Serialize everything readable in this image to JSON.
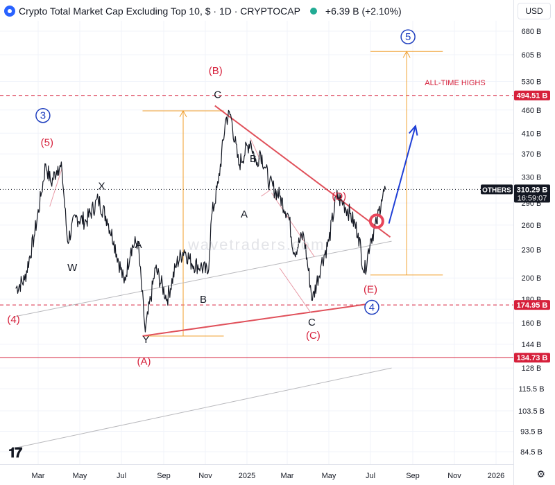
{
  "header": {
    "title": "Crypto Total Market Cap Excluding Top 10, $ · 1D · CRYPTOCAP",
    "change": "+6.39 B (+2.10%)"
  },
  "currency": "USD",
  "watermark": "wavetraders.com",
  "colors": {
    "label_red": "#d6203b",
    "label_blue": "#1f3fbf",
    "orange": "#f0a030",
    "trend_red": "#e0505a",
    "price": "#131722"
  },
  "icons": {
    "logo": "tradingview-logo-icon",
    "status": "market-open-dot-icon",
    "settings": "gear-icon"
  },
  "chart_data": {
    "type": "line",
    "title": "Crypto Total Market Cap Excluding Top 10",
    "scale": "log",
    "ylim": [
      80,
      720
    ],
    "x_ticks": [
      "Mar",
      "May",
      "Jul",
      "Sep",
      "Nov",
      "2025",
      "Mar",
      "May",
      "Jul",
      "Sep",
      "Nov",
      "2026"
    ],
    "y_ticks": [
      "680 B",
      "605 B",
      "530 B",
      "460 B",
      "410 B",
      "370 B",
      "330 B",
      "290 B",
      "260 B",
      "230 B",
      "200 B",
      "180 B",
      "160 B",
      "144 B",
      "128 B",
      "115.5 B",
      "103.5 B",
      "93.5 B",
      "84.5 B"
    ],
    "price_tags": [
      {
        "label": "494.51 B",
        "value": 494.51,
        "style": "red"
      },
      {
        "label": "310.29 B",
        "value": 310.29,
        "style": "dark",
        "sub": "16:59:07",
        "symbol": "OTHERS"
      },
      {
        "label": "174.95 B",
        "value": 174.95,
        "style": "red"
      },
      {
        "label": "134.73 B",
        "value": 134.73,
        "style": "red"
      }
    ],
    "series": [
      {
        "name": "OTHERS",
        "points": [
          [
            "2024-01-28",
            190
          ],
          [
            "2024-02-10",
            198
          ],
          [
            "2024-02-24",
            245
          ],
          [
            "2024-03-05",
            300
          ],
          [
            "2024-03-12",
            352
          ],
          [
            "2024-03-20",
            320
          ],
          [
            "2024-03-30",
            348
          ],
          [
            "2024-04-05",
            340
          ],
          [
            "2024-04-13",
            240
          ],
          [
            "2024-04-25",
            270
          ],
          [
            "2024-05-10",
            265
          ],
          [
            "2024-05-28",
            295
          ],
          [
            "2024-06-10",
            268
          ],
          [
            "2024-06-20",
            240
          ],
          [
            "2024-07-05",
            195
          ],
          [
            "2024-07-15",
            232
          ],
          [
            "2024-07-25",
            240
          ],
          [
            "2024-08-05",
            153
          ],
          [
            "2024-08-20",
            210
          ],
          [
            "2024-09-06",
            180
          ],
          [
            "2024-09-20",
            215
          ],
          [
            "2024-10-01",
            230
          ],
          [
            "2024-10-12",
            215
          ],
          [
            "2024-10-25",
            212
          ],
          [
            "2024-11-05",
            205
          ],
          [
            "2024-11-10",
            270
          ],
          [
            "2024-11-20",
            320
          ],
          [
            "2024-12-01",
            440
          ],
          [
            "2024-12-08",
            450
          ],
          [
            "2024-12-20",
            350
          ],
          [
            "2025-01-06",
            395
          ],
          [
            "2025-01-15",
            350
          ],
          [
            "2025-01-20",
            376
          ],
          [
            "2025-01-28",
            345
          ],
          [
            "2025-02-03",
            320
          ],
          [
            "2025-02-18",
            300
          ],
          [
            "2025-03-03",
            272
          ],
          [
            "2025-03-11",
            227
          ],
          [
            "2025-03-25",
            248
          ],
          [
            "2025-04-07",
            179
          ],
          [
            "2025-04-20",
            215
          ],
          [
            "2025-05-01",
            240
          ],
          [
            "2025-05-12",
            300
          ],
          [
            "2025-05-22",
            290
          ],
          [
            "2025-06-01",
            275
          ],
          [
            "2025-06-13",
            250
          ],
          [
            "2025-06-22",
            205
          ],
          [
            "2025-07-01",
            242
          ],
          [
            "2025-07-10",
            262
          ],
          [
            "2025-07-17",
            295
          ],
          [
            "2025-07-23",
            310.29
          ]
        ]
      }
    ],
    "wave_labels": [
      {
        "text": "(4)",
        "color": "red",
        "x": "2024-01-25",
        "y": 160
      },
      {
        "text": "(5)",
        "color": "red",
        "x": "2024-03-14",
        "y": 385
      },
      {
        "text": "3",
        "color": "blue",
        "circled": true,
        "x": "2024-03-08",
        "y": 440
      },
      {
        "text": "W",
        "color": "black",
        "x": "2024-04-20",
        "y": 207
      },
      {
        "text": "X",
        "color": "black",
        "x": "2024-06-02",
        "y": 310
      },
      {
        "text": "A",
        "color": "black",
        "x": "2024-07-26",
        "y": 232
      },
      {
        "text": "Y",
        "color": "black",
        "x": "2024-08-06",
        "y": 145
      },
      {
        "text": "(A)",
        "color": "red",
        "x": "2024-08-03",
        "y": 130
      },
      {
        "text": "B",
        "color": "black",
        "x": "2024-10-29",
        "y": 177
      },
      {
        "text": "(B)",
        "color": "red",
        "x": "2024-11-16",
        "y": 550
      },
      {
        "text": "C",
        "color": "black",
        "x": "2024-11-19",
        "y": 488
      },
      {
        "text": "A",
        "color": "black",
        "x": "2024-12-28",
        "y": 270
      },
      {
        "text": "B",
        "color": "black",
        "x": "2025-01-10",
        "y": 355
      },
      {
        "text": "C",
        "color": "black",
        "x": "2025-04-06",
        "y": 158
      },
      {
        "text": "(C)",
        "color": "red",
        "x": "2025-04-08",
        "y": 148
      },
      {
        "text": "(D)",
        "color": "red",
        "x": "2025-05-16",
        "y": 295
      },
      {
        "text": "(E)",
        "color": "red",
        "x": "2025-07-01",
        "y": 186
      },
      {
        "text": "4",
        "color": "blue",
        "circled": true,
        "x": "2025-07-03",
        "y": 170
      },
      {
        "text": "5",
        "color": "blue",
        "circled": true,
        "x": "2025-08-25",
        "y": 650
      },
      {
        "text": "ALL-TIME HIGHS",
        "color": "red",
        "x": "2025-11-02",
        "y": 520
      }
    ],
    "watermark_at": {
      "x": "2025-01-15",
      "y": 230
    },
    "levels": [
      {
        "value": 494.51,
        "style": "red-dashed"
      },
      {
        "value": 174.95,
        "style": "red-dashed"
      },
      {
        "value": 134.73,
        "style": "red-solid"
      },
      {
        "value": 310.29,
        "style": "black-dotted"
      }
    ],
    "trendlines": [
      {
        "from": [
          "2024-11-15",
          470
        ],
        "to": [
          "2025-07-30",
          245
        ],
        "color": "red"
      },
      {
        "from": [
          "2024-08-01",
          150
        ],
        "to": [
          "2025-06-30",
          176
        ],
        "color": "red"
      },
      {
        "from": [
          "2024-01-25",
          165
        ],
        "to": [
          "2025-08-01",
          240
        ],
        "color": "gray"
      },
      {
        "from": [
          "2024-01-25",
          86
        ],
        "to": [
          "2025-08-01",
          128
        ],
        "color": "gray"
      }
    ],
    "minor_trendlines": [
      {
        "from": [
          "2024-03-18",
          285
        ],
        "to": [
          "2024-04-05",
          345
        ]
      },
      {
        "from": [
          "2025-01-06",
          400
        ],
        "to": [
          "2025-01-20",
          360
        ]
      },
      {
        "from": [
          "2025-01-22",
          300
        ],
        "to": [
          "2025-02-05",
          310
        ]
      },
      {
        "from": [
          "2025-02-06",
          305
        ],
        "to": [
          "2025-04-10",
          222
        ]
      },
      {
        "from": [
          "2025-02-18",
          210
        ],
        "to": [
          "2025-04-05",
          168
        ]
      }
    ],
    "measure_boxes": [
      {
        "x_from": "2024-08-01",
        "x_to": "2024-11-28",
        "low": 150,
        "high": 458
      },
      {
        "x_from": "2025-07-01",
        "x_to": "2025-10-15",
        "low": 203,
        "high": 615
      }
    ],
    "projection_arrow": {
      "from": [
        "2025-07-28",
        262
      ],
      "to": [
        "2025-09-05",
        425
      ]
    },
    "highlight_circle": {
      "x": "2025-07-10",
      "y": 265
    }
  }
}
